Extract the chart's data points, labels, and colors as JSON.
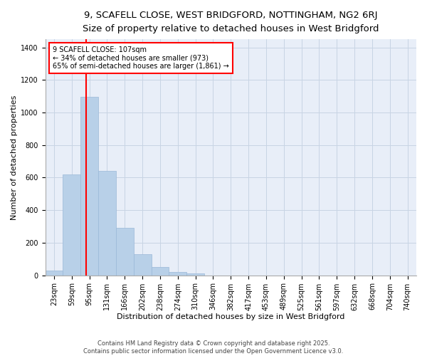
{
  "title_line1": "9, SCAFELL CLOSE, WEST BRIDGFORD, NOTTINGHAM, NG2 6RJ",
  "title_line2": "Size of property relative to detached houses in West Bridgford",
  "xlabel": "Distribution of detached houses by size in West Bridgford",
  "ylabel": "Number of detached properties",
  "categories": [
    "23sqm",
    "59sqm",
    "95sqm",
    "131sqm",
    "166sqm",
    "202sqm",
    "238sqm",
    "274sqm",
    "310sqm",
    "346sqm",
    "382sqm",
    "417sqm",
    "453sqm",
    "489sqm",
    "525sqm",
    "561sqm",
    "597sqm",
    "632sqm",
    "668sqm",
    "704sqm",
    "740sqm"
  ],
  "values": [
    30,
    620,
    1095,
    640,
    290,
    130,
    50,
    20,
    10,
    0,
    0,
    0,
    0,
    0,
    0,
    0,
    0,
    0,
    0,
    0,
    0
  ],
  "bar_color": "#b8d0e8",
  "bar_edge_color": "#9ab8d8",
  "grid_color": "#c8d4e4",
  "bg_color": "#e8eef8",
  "annotation_text": "9 SCAFELL CLOSE: 107sqm\n← 34% of detached houses are smaller (973)\n65% of semi-detached houses are larger (1,861) →",
  "annotation_box_color": "white",
  "annotation_box_edge": "red",
  "vline_color": "red",
  "property_sqm": 107,
  "bin_starts": [
    23,
    59,
    95,
    131,
    166,
    202,
    238,
    274,
    310,
    346,
    382,
    417,
    453,
    489,
    525,
    561,
    597,
    632,
    668,
    704,
    740
  ],
  "ylim": [
    0,
    1450
  ],
  "yticks": [
    0,
    200,
    400,
    600,
    800,
    1000,
    1200,
    1400
  ],
  "footer_line1": "Contains HM Land Registry data © Crown copyright and database right 2025.",
  "footer_line2": "Contains public sector information licensed under the Open Government Licence v3.0.",
  "title_fontsize": 9.5,
  "subtitle_fontsize": 8.5,
  "xlabel_fontsize": 8,
  "ylabel_fontsize": 8,
  "tick_fontsize": 7,
  "annotation_fontsize": 7,
  "footer_fontsize": 6
}
